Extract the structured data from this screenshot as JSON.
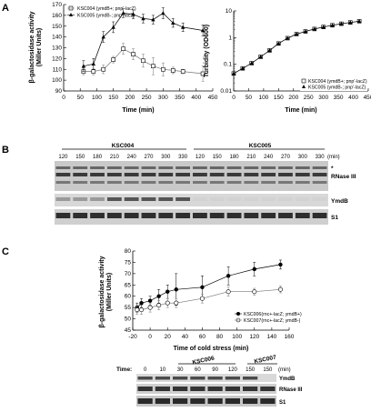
{
  "panels": {
    "A": "A",
    "B": "B",
    "C": "C"
  },
  "chart_data": [
    {
      "type": "line",
      "panel": "A",
      "ylabel": "β-galactosidase activity",
      "ylabel2": "(Miller Units)",
      "xlabel": "Time (min)",
      "xlim": [
        0,
        450
      ],
      "ylim": [
        90,
        170
      ],
      "xticks": [
        0,
        50,
        100,
        150,
        200,
        250,
        300,
        350,
        400,
        450
      ],
      "yticks": [
        90,
        100,
        110,
        120,
        130,
        140,
        150,
        160,
        170
      ],
      "legend_position": "top-left",
      "series": [
        {
          "name": "KSC004 (ymdB+; pnp'-lacZ)",
          "marker": "open-square",
          "x": [
            60,
            90,
            120,
            150,
            180,
            210,
            240,
            270,
            300,
            330,
            360,
            420
          ],
          "y": [
            108,
            108,
            110,
            119,
            129,
            124,
            118,
            113,
            110,
            109,
            108,
            106
          ],
          "err": [
            3,
            3,
            4,
            3,
            5,
            5,
            6,
            8,
            6,
            3,
            2,
            7
          ]
        },
        {
          "name": "KSC005 (ymdB-; pnp'-lacZ)",
          "marker": "filled-triangle",
          "x": [
            60,
            90,
            120,
            150,
            180,
            210,
            240,
            270,
            300,
            330,
            360,
            420
          ],
          "y": [
            113,
            115,
            140,
            149,
            162,
            161,
            157,
            156,
            162,
            153,
            149,
            146
          ],
          "err": [
            5,
            5,
            5,
            5,
            4,
            4,
            4,
            4,
            5,
            4,
            4,
            5
          ]
        }
      ]
    },
    {
      "type": "line",
      "panel": "A-right",
      "ylabel": "Turbidity (OD600)",
      "xlabel": "Time (min)",
      "xlim": [
        0,
        450
      ],
      "ylim": [
        0.01,
        10
      ],
      "yscale": "log",
      "xticks": [
        0,
        50,
        100,
        150,
        200,
        250,
        300,
        350,
        400,
        450
      ],
      "yticklabels": [
        "0.01",
        "0.1",
        "1",
        "10"
      ],
      "legend_position": "bottom-right",
      "series": [
        {
          "name": "KSC004 (ymdB+; pnp'-lacZ)",
          "marker": "open-square",
          "x": [
            0,
            30,
            60,
            90,
            120,
            150,
            180,
            210,
            240,
            270,
            300,
            330,
            360,
            390,
            420
          ],
          "y": [
            0.045,
            0.07,
            0.11,
            0.19,
            0.33,
            0.6,
            0.95,
            1.35,
            1.7,
            2.1,
            2.5,
            2.9,
            3.3,
            3.7,
            4.1
          ]
        },
        {
          "name": "KSC005 (ymdB-; pnp'-lacZ)",
          "marker": "filled-triangle",
          "x": [
            0,
            30,
            60,
            90,
            120,
            150,
            180,
            210,
            240,
            270,
            300,
            330,
            360,
            390,
            420
          ],
          "y": [
            0.045,
            0.07,
            0.11,
            0.19,
            0.33,
            0.6,
            0.95,
            1.35,
            1.7,
            2.1,
            2.5,
            2.9,
            3.3,
            3.7,
            4.1
          ]
        }
      ]
    },
    {
      "type": "line",
      "panel": "C",
      "ylabel": "β-galactosidase activity",
      "ylabel2": "(Miller Units)",
      "xlabel": "Time of cold stress (min)",
      "xlim": [
        -20,
        160
      ],
      "ylim": [
        45,
        80
      ],
      "xticks": [
        -20,
        0,
        20,
        40,
        60,
        80,
        100,
        120,
        140,
        160
      ],
      "yticks": [
        45,
        50,
        55,
        60,
        65,
        70,
        75,
        80
      ],
      "legend_position": "bottom-right",
      "series": [
        {
          "name": "KSC006(rnc+-lacZ; ymdB+)",
          "marker": "filled-circle",
          "x": [
            -15,
            -10,
            0,
            10,
            20,
            30,
            60,
            90,
            120,
            150
          ],
          "y": [
            55,
            57,
            58,
            60,
            62,
            63,
            64,
            69,
            72,
            74
          ],
          "err": [
            2,
            2,
            2,
            3,
            3,
            7,
            5,
            4,
            3,
            2
          ]
        },
        {
          "name": "KSC007(rnc+-lacZ; ymdB-)",
          "marker": "open-circle",
          "x": [
            -15,
            -10,
            0,
            10,
            20,
            30,
            60,
            90,
            120,
            150
          ],
          "y": [
            54,
            54,
            55,
            56,
            57,
            57,
            59,
            62,
            62,
            63
          ],
          "err": [
            2,
            2,
            2,
            2,
            2,
            2,
            2,
            2,
            1.5,
            1.5
          ]
        }
      ]
    }
  ],
  "blotB": {
    "strains": [
      "KSC004",
      "KSC005"
    ],
    "lanes": [
      "120",
      "150",
      "180",
      "210",
      "240",
      "270",
      "300",
      "330",
      "120",
      "150",
      "180",
      "210",
      "240",
      "270",
      "300",
      "330"
    ],
    "unit": "(min)",
    "star": "*",
    "rows": [
      "RNase III",
      "YmdB",
      "S1"
    ]
  },
  "blotC": {
    "time_label": "Time:",
    "strains": [
      "KSC006",
      "KSC007"
    ],
    "lanes": [
      "0",
      "10",
      "30",
      "60",
      "90",
      "120",
      "150",
      "150"
    ],
    "unit": "(min)",
    "rows": [
      "YmdB",
      "RNase III",
      "S1"
    ]
  }
}
